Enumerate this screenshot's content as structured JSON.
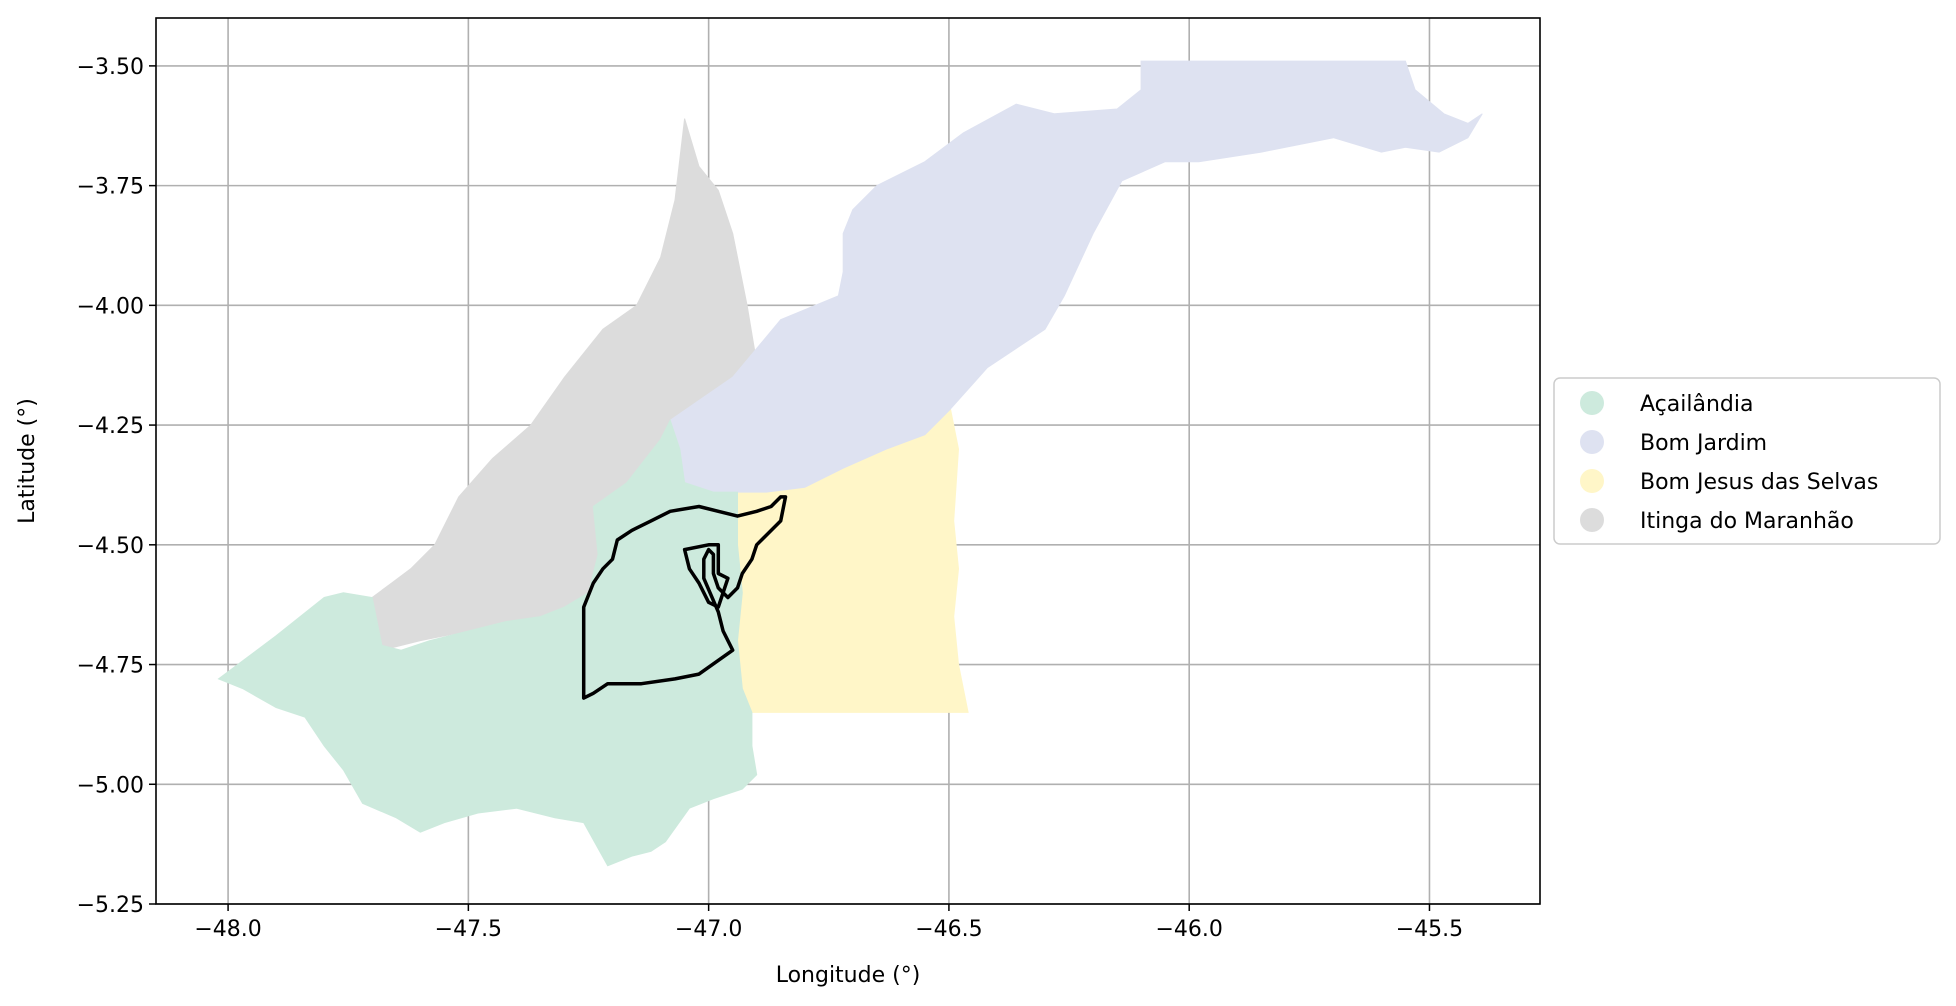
{
  "chart_data": {
    "type": "choropleth-map",
    "xlabel": "Longitude (°)",
    "ylabel": "Latitude (°)",
    "xlim": [
      -48.15,
      -45.27
    ],
    "ylim": [
      -5.25,
      -3.4
    ],
    "grid": true,
    "x_ticks": [
      -48.0,
      -47.5,
      -47.0,
      -46.5,
      -46.0,
      -45.5
    ],
    "y_ticks": [
      -3.5,
      -3.75,
      -4.0,
      -4.25,
      -4.5,
      -4.75,
      -5.0,
      -5.25
    ],
    "x_tick_labels": [
      "−48.0",
      "−47.5",
      "−47.0",
      "−46.5",
      "−46.0",
      "−45.5"
    ],
    "y_tick_labels": [
      "−3.50",
      "−3.75",
      "−4.00",
      "−4.25",
      "−4.50",
      "−4.75",
      "−5.00",
      "−5.25"
    ],
    "legend_position": "center-right outside",
    "regions": [
      {
        "name": "Açailândia",
        "color": "#cdeadd",
        "polygon": [
          [
            -48.02,
            -4.78
          ],
          [
            -47.9,
            -4.69
          ],
          [
            -47.8,
            -4.61
          ],
          [
            -47.76,
            -4.6
          ],
          [
            -47.7,
            -4.61
          ],
          [
            -47.68,
            -4.71
          ],
          [
            -47.64,
            -4.72
          ],
          [
            -47.58,
            -4.7
          ],
          [
            -47.5,
            -4.68
          ],
          [
            -47.42,
            -4.66
          ],
          [
            -47.35,
            -4.65
          ],
          [
            -47.3,
            -4.63
          ],
          [
            -47.25,
            -4.6
          ],
          [
            -47.23,
            -4.52
          ],
          [
            -47.24,
            -4.42
          ],
          [
            -47.17,
            -4.37
          ],
          [
            -47.1,
            -4.28
          ],
          [
            -47.08,
            -4.24
          ],
          [
            -47.06,
            -4.3
          ],
          [
            -47.05,
            -4.37
          ],
          [
            -46.99,
            -4.39
          ],
          [
            -46.94,
            -4.39
          ],
          [
            -46.94,
            -4.5
          ],
          [
            -46.93,
            -4.6
          ],
          [
            -46.94,
            -4.7
          ],
          [
            -46.93,
            -4.8
          ],
          [
            -46.91,
            -4.85
          ],
          [
            -46.91,
            -4.92
          ],
          [
            -46.9,
            -4.98
          ],
          [
            -46.93,
            -5.01
          ],
          [
            -46.99,
            -5.03
          ],
          [
            -47.04,
            -5.05
          ],
          [
            -47.09,
            -5.12
          ],
          [
            -47.12,
            -5.14
          ],
          [
            -47.16,
            -5.15
          ],
          [
            -47.21,
            -5.17
          ],
          [
            -47.26,
            -5.08
          ],
          [
            -47.32,
            -5.07
          ],
          [
            -47.4,
            -5.05
          ],
          [
            -47.48,
            -5.06
          ],
          [
            -47.55,
            -5.08
          ],
          [
            -47.6,
            -5.1
          ],
          [
            -47.65,
            -5.07
          ],
          [
            -47.72,
            -5.04
          ],
          [
            -47.76,
            -4.97
          ],
          [
            -47.8,
            -4.92
          ],
          [
            -47.84,
            -4.86
          ],
          [
            -47.9,
            -4.84
          ],
          [
            -47.97,
            -4.8
          ]
        ]
      },
      {
        "name": "Bom Jardim",
        "color": "#dee2f1",
        "polygon": [
          [
            -47.08,
            -4.24
          ],
          [
            -46.95,
            -4.15
          ],
          [
            -46.85,
            -4.03
          ],
          [
            -46.73,
            -3.98
          ],
          [
            -46.72,
            -3.93
          ],
          [
            -46.72,
            -3.85
          ],
          [
            -46.7,
            -3.8
          ],
          [
            -46.65,
            -3.75
          ],
          [
            -46.55,
            -3.7
          ],
          [
            -46.47,
            -3.64
          ],
          [
            -46.36,
            -3.58
          ],
          [
            -46.28,
            -3.6
          ],
          [
            -46.15,
            -3.59
          ],
          [
            -46.1,
            -3.55
          ],
          [
            -46.1,
            -3.49
          ],
          [
            -45.8,
            -3.49
          ],
          [
            -45.55,
            -3.49
          ],
          [
            -45.53,
            -3.55
          ],
          [
            -45.47,
            -3.6
          ],
          [
            -45.42,
            -3.62
          ],
          [
            -45.39,
            -3.6
          ],
          [
            -45.42,
            -3.65
          ],
          [
            -45.48,
            -3.68
          ],
          [
            -45.55,
            -3.67
          ],
          [
            -45.6,
            -3.68
          ],
          [
            -45.7,
            -3.65
          ],
          [
            -45.85,
            -3.68
          ],
          [
            -45.98,
            -3.7
          ],
          [
            -46.05,
            -3.7
          ],
          [
            -46.14,
            -3.74
          ],
          [
            -46.2,
            -3.85
          ],
          [
            -46.26,
            -3.98
          ],
          [
            -46.3,
            -4.05
          ],
          [
            -46.42,
            -4.13
          ],
          [
            -46.5,
            -4.22
          ],
          [
            -46.55,
            -4.27
          ],
          [
            -46.63,
            -4.3
          ],
          [
            -46.72,
            -4.34
          ],
          [
            -46.8,
            -4.38
          ],
          [
            -46.88,
            -4.39
          ],
          [
            -46.94,
            -4.39
          ],
          [
            -46.99,
            -4.39
          ],
          [
            -47.05,
            -4.37
          ],
          [
            -47.06,
            -4.3
          ]
        ]
      },
      {
        "name": "Bom Jesus das Selvas",
        "color": "#fff6c8",
        "polygon": [
          [
            -46.94,
            -4.39
          ],
          [
            -46.85,
            -4.38
          ],
          [
            -46.73,
            -4.34
          ],
          [
            -46.6,
            -4.29
          ],
          [
            -46.5,
            -4.2
          ],
          [
            -46.48,
            -4.3
          ],
          [
            -46.49,
            -4.45
          ],
          [
            -46.48,
            -4.55
          ],
          [
            -46.49,
            -4.65
          ],
          [
            -46.48,
            -4.75
          ],
          [
            -46.46,
            -4.85
          ],
          [
            -46.6,
            -4.85
          ],
          [
            -46.75,
            -4.85
          ],
          [
            -46.91,
            -4.85
          ],
          [
            -46.93,
            -4.8
          ],
          [
            -46.94,
            -4.7
          ],
          [
            -46.93,
            -4.6
          ],
          [
            -46.94,
            -4.5
          ]
        ]
      },
      {
        "name": "Itinga do Maranhão",
        "color": "#dcdcdc",
        "polygon": [
          [
            -47.7,
            -4.61
          ],
          [
            -47.68,
            -4.72
          ],
          [
            -47.6,
            -4.7
          ],
          [
            -47.5,
            -4.68
          ],
          [
            -47.42,
            -4.66
          ],
          [
            -47.35,
            -4.65
          ],
          [
            -47.3,
            -4.63
          ],
          [
            -47.25,
            -4.6
          ],
          [
            -47.23,
            -4.52
          ],
          [
            -47.24,
            -4.42
          ],
          [
            -47.17,
            -4.37
          ],
          [
            -47.1,
            -4.28
          ],
          [
            -47.08,
            -4.24
          ],
          [
            -46.97,
            -4.2
          ],
          [
            -46.9,
            -4.12
          ],
          [
            -46.92,
            -4.0
          ],
          [
            -46.95,
            -3.85
          ],
          [
            -46.98,
            -3.76
          ],
          [
            -47.02,
            -3.71
          ],
          [
            -47.05,
            -3.61
          ],
          [
            -47.07,
            -3.78
          ],
          [
            -47.1,
            -3.9
          ],
          [
            -47.15,
            -4.0
          ],
          [
            -47.22,
            -4.05
          ],
          [
            -47.3,
            -4.15
          ],
          [
            -47.37,
            -4.25
          ],
          [
            -47.45,
            -4.32
          ],
          [
            -47.52,
            -4.4
          ],
          [
            -47.57,
            -4.5
          ],
          [
            -47.62,
            -4.55
          ],
          [
            -47.66,
            -4.58
          ]
        ]
      }
    ],
    "outline": {
      "color": "#000000",
      "outer": [
        [
          -47.26,
          -4.82
        ],
        [
          -47.26,
          -4.72
        ],
        [
          -47.26,
          -4.63
        ],
        [
          -47.24,
          -4.58
        ],
        [
          -47.22,
          -4.55
        ],
        [
          -47.2,
          -4.53
        ],
        [
          -47.19,
          -4.49
        ],
        [
          -47.16,
          -4.47
        ],
        [
          -47.12,
          -4.45
        ],
        [
          -47.08,
          -4.43
        ],
        [
          -47.02,
          -4.42
        ],
        [
          -46.98,
          -4.43
        ],
        [
          -46.94,
          -4.44
        ],
        [
          -46.9,
          -4.43
        ],
        [
          -46.87,
          -4.42
        ],
        [
          -46.85,
          -4.4
        ],
        [
          -46.84,
          -4.4
        ],
        [
          -46.85,
          -4.45
        ],
        [
          -46.88,
          -4.48
        ],
        [
          -46.9,
          -4.5
        ],
        [
          -46.91,
          -4.53
        ],
        [
          -46.93,
          -4.56
        ],
        [
          -46.94,
          -4.59
        ],
        [
          -46.96,
          -4.61
        ],
        [
          -46.98,
          -4.59
        ],
        [
          -46.99,
          -4.56
        ],
        [
          -46.99,
          -4.52
        ],
        [
          -47.0,
          -4.51
        ],
        [
          -47.01,
          -4.53
        ],
        [
          -47.01,
          -4.57
        ],
        [
          -46.98,
          -4.64
        ],
        [
          -46.97,
          -4.68
        ],
        [
          -46.95,
          -4.72
        ],
        [
          -47.02,
          -4.77
        ],
        [
          -47.07,
          -4.78
        ],
        [
          -47.14,
          -4.79
        ],
        [
          -47.21,
          -4.79
        ],
        [
          -47.24,
          -4.81
        ]
      ],
      "inner": [
        [
          -47.05,
          -4.51
        ],
        [
          -47.04,
          -4.55
        ],
        [
          -47.02,
          -4.58
        ],
        [
          -47.0,
          -4.62
        ],
        [
          -46.98,
          -4.63
        ],
        [
          -46.97,
          -4.6
        ],
        [
          -46.96,
          -4.57
        ],
        [
          -46.98,
          -4.56
        ],
        [
          -46.98,
          -4.5
        ],
        [
          -47.0,
          -4.5
        ]
      ]
    }
  },
  "legend": {
    "items": [
      {
        "label": "Açailândia",
        "color": "#cdeadd"
      },
      {
        "label": "Bom Jardim",
        "color": "#dee2f1"
      },
      {
        "label": "Bom Jesus das Selvas",
        "color": "#fff6c8"
      },
      {
        "label": "Itinga do Maranhão",
        "color": "#dcdcdc"
      }
    ]
  }
}
